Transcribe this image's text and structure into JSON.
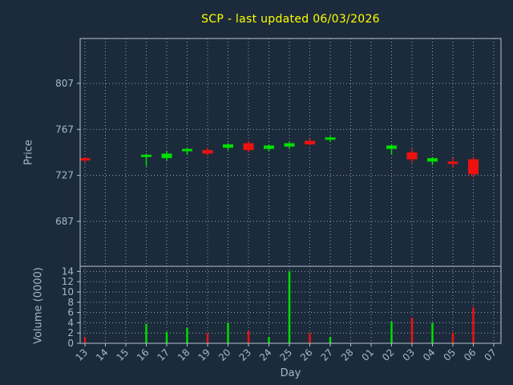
{
  "title": {
    "text": "SCP - last updated 06/03/2026"
  },
  "colors": {
    "background": "#1c2b3b",
    "frame": "#b6c2cc",
    "grid": "#aab8c2",
    "label": "#a2b8d0",
    "title": "#ffff00",
    "up": "#00dd00",
    "down": "#ee1111"
  },
  "chart_data": {
    "type": "candlestick",
    "title": "SCP - last updated 06/03/2026",
    "xlabel": "Day",
    "price_axis": {
      "label": "Price",
      "ticks": [
        687,
        727,
        767,
        807
      ],
      "range": [
        648,
        846
      ]
    },
    "volume_axis": {
      "label": "Volume (0000)",
      "ticks": [
        0,
        2,
        4,
        6,
        8,
        10,
        12,
        14
      ],
      "range": [
        0,
        15
      ]
    },
    "days": [
      "13",
      "14",
      "15",
      "16",
      "17",
      "18",
      "19",
      "20",
      "23",
      "24",
      "25",
      "26",
      "27",
      "28",
      "01",
      "02",
      "03",
      "04",
      "05",
      "06",
      "07"
    ],
    "candles": [
      {
        "day": "13",
        "open": 742,
        "high": 743,
        "low": 738,
        "close": 740,
        "dir": "down"
      },
      {
        "day": "16",
        "open": 743,
        "high": 746,
        "low": 735,
        "close": 745,
        "dir": "up"
      },
      {
        "day": "17",
        "open": 742,
        "high": 748,
        "low": 740,
        "close": 746,
        "dir": "up"
      },
      {
        "day": "18",
        "open": 748,
        "high": 751,
        "low": 745,
        "close": 750,
        "dir": "up"
      },
      {
        "day": "19",
        "open": 749,
        "high": 751,
        "low": 744,
        "close": 746,
        "dir": "down"
      },
      {
        "day": "20",
        "open": 751,
        "high": 755,
        "low": 749,
        "close": 754,
        "dir": "up"
      },
      {
        "day": "23",
        "open": 755,
        "high": 757,
        "low": 747,
        "close": 749,
        "dir": "down"
      },
      {
        "day": "24",
        "open": 750,
        "high": 754,
        "low": 748,
        "close": 753,
        "dir": "up"
      },
      {
        "day": "25",
        "open": 752,
        "high": 756,
        "low": 750,
        "close": 755,
        "dir": "up"
      },
      {
        "day": "26",
        "open": 757,
        "high": 759,
        "low": 753,
        "close": 754,
        "dir": "down"
      },
      {
        "day": "27",
        "open": 758,
        "high": 761,
        "low": 756,
        "close": 760,
        "dir": "up"
      },
      {
        "day": "02",
        "open": 750,
        "high": 754,
        "low": 745,
        "close": 753,
        "dir": "up"
      },
      {
        "day": "03",
        "open": 747,
        "high": 750,
        "low": 738,
        "close": 741,
        "dir": "down"
      },
      {
        "day": "04",
        "open": 739,
        "high": 743,
        "low": 736,
        "close": 742,
        "dir": "up"
      },
      {
        "day": "05",
        "open": 739,
        "high": 742,
        "low": 734,
        "close": 737,
        "dir": "down"
      },
      {
        "day": "06",
        "open": 741,
        "high": 743,
        "low": 725,
        "close": 728,
        "dir": "down"
      }
    ],
    "volumes": [
      {
        "day": "13",
        "value": 1.2,
        "dir": "down"
      },
      {
        "day": "16",
        "value": 3.8,
        "dir": "up"
      },
      {
        "day": "17",
        "value": 2.2,
        "dir": "up"
      },
      {
        "day": "18",
        "value": 3.0,
        "dir": "up"
      },
      {
        "day": "19",
        "value": 2.0,
        "dir": "down"
      },
      {
        "day": "20",
        "value": 4.0,
        "dir": "up"
      },
      {
        "day": "23",
        "value": 2.4,
        "dir": "down"
      },
      {
        "day": "24",
        "value": 1.2,
        "dir": "up"
      },
      {
        "day": "25",
        "value": 14.0,
        "dir": "up"
      },
      {
        "day": "26",
        "value": 2.0,
        "dir": "down"
      },
      {
        "day": "27",
        "value": 1.2,
        "dir": "up"
      },
      {
        "day": "02",
        "value": 4.2,
        "dir": "up"
      },
      {
        "day": "03",
        "value": 5.0,
        "dir": "down"
      },
      {
        "day": "04",
        "value": 4.0,
        "dir": "up"
      },
      {
        "day": "05",
        "value": 2.0,
        "dir": "down"
      },
      {
        "day": "06",
        "value": 7.0,
        "dir": "down"
      }
    ]
  }
}
